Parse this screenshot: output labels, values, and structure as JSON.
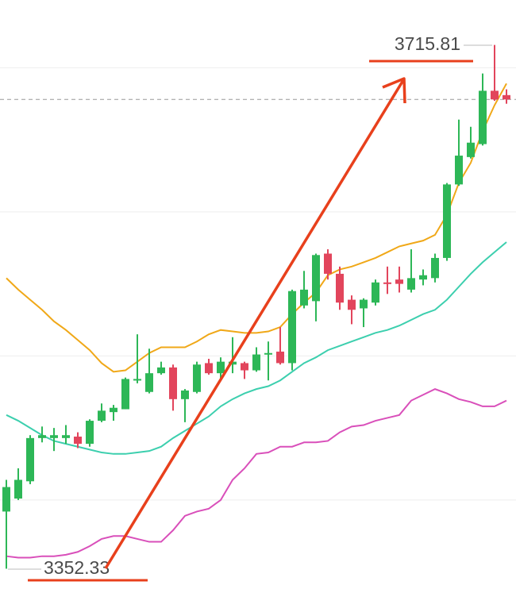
{
  "chart_data": {
    "type": "candlestick",
    "up_color": "#2db757",
    "down_color": "#e2455c",
    "open": [
      3392,
      3401,
      3413,
      3443,
      3443,
      3443,
      3444,
      3439,
      3455,
      3461,
      3463,
      3483,
      3475,
      3488,
      3492,
      3470,
      3475,
      3495,
      3488,
      3494,
      3495,
      3490,
      3501,
      3503,
      3495,
      3535,
      3538,
      3571,
      3557,
      3539,
      3533,
      3537,
      3551,
      3553,
      3546,
      3553,
      3554,
      3568,
      3619,
      3638,
      3647,
      3684,
      3681
    ],
    "high": [
      3414,
      3422,
      3445,
      3451,
      3450,
      3452,
      3447,
      3456,
      3467,
      3466,
      3485,
      3515,
      3505,
      3496,
      3494,
      3477,
      3496,
      3498,
      3499,
      3513,
      3496,
      3506,
      3510,
      3520,
      3546,
      3559,
      3571,
      3574,
      3562,
      3542,
      3540,
      3553,
      3562,
      3562,
      3574,
      3560,
      3571,
      3620,
      3664,
      3659,
      3696,
      3715.81,
      3685
    ],
    "low": [
      3352.33,
      3400,
      3411,
      3440,
      3434,
      3439,
      3436,
      3437,
      3454,
      3455,
      3463,
      3481,
      3474,
      3487,
      3462,
      3454,
      3474,
      3487,
      3483,
      3488,
      3484,
      3489,
      3483,
      3494,
      3490,
      3533,
      3524,
      3553,
      3532,
      3522,
      3520,
      3535,
      3543,
      3544,
      3544,
      3549,
      3551,
      3566,
      3618,
      3637,
      3646,
      3677,
      3675
    ],
    "close": [
      3409,
      3414,
      3443,
      3445,
      3445,
      3445,
      3439,
      3455,
      3462,
      3464,
      3484,
      3484,
      3488,
      3492,
      3470,
      3476,
      3494,
      3488,
      3496,
      3496,
      3490,
      3501,
      3502,
      3495,
      3545,
      3546,
      3570,
      3557,
      3537,
      3532,
      3539,
      3551,
      3550,
      3550,
      3554,
      3556,
      3568,
      3619,
      3639,
      3648,
      3684,
      3678,
      3678
    ],
    "series": [
      {
        "color": "#f0a818",
        "values": [
          3554,
          3546,
          3539,
          3532,
          3524,
          3518,
          3511,
          3504,
          3495,
          3489,
          3490,
          3496,
          3502,
          3506,
          3506,
          3506,
          3510,
          3515,
          3518,
          3517,
          3516,
          3516,
          3517,
          3520,
          3529,
          3537,
          3544,
          3556,
          3560,
          3562,
          3565,
          3568,
          3572,
          3576,
          3578,
          3580,
          3584,
          3598,
          3620,
          3634,
          3656,
          3674,
          3689
        ]
      },
      {
        "color": "#3ccfae",
        "values": [
          3459,
          3455,
          3450,
          3445,
          3441,
          3439,
          3437,
          3435,
          3433,
          3432,
          3432,
          3433,
          3434,
          3437,
          3443,
          3448,
          3453,
          3458,
          3465,
          3470,
          3474,
          3477,
          3479,
          3483,
          3489,
          3495,
          3499,
          3504,
          3507,
          3510,
          3513,
          3516,
          3518,
          3521,
          3525,
          3529,
          3532,
          3539,
          3548,
          3557,
          3565,
          3572,
          3579
        ]
      },
      {
        "color": "#d94fba",
        "values": [
          3361,
          3360,
          3360,
          3361,
          3361,
          3362,
          3364,
          3368,
          3373,
          3375,
          3375,
          3373,
          3371,
          3371,
          3379,
          3389,
          3392,
          3394,
          3400,
          3414,
          3422,
          3432,
          3433,
          3437,
          3437,
          3440,
          3440,
          3441,
          3447,
          3451,
          3452,
          3455,
          3457,
          3459,
          3469,
          3473,
          3477,
          3474,
          3470,
          3468,
          3465,
          3465,
          3469
        ]
      }
    ],
    "ylim": [
      3341,
      3747
    ],
    "gridlines": [
      3400,
      3500,
      3600,
      3700
    ],
    "last_price": 3678,
    "high_label": "3715.81",
    "low_label": "3352.33"
  }
}
